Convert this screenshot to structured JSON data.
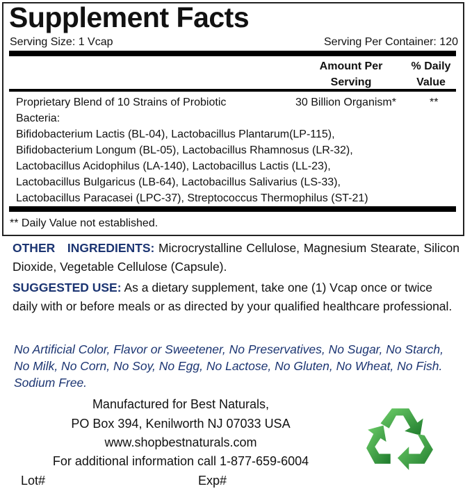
{
  "facts": {
    "title": "Supplement Facts",
    "serving_size": "Serving Size: 1 Vcap",
    "servings_per_container": "Serving Per Container: 120",
    "col_amount": [
      "Amount Per",
      "Serving"
    ],
    "col_daily": [
      "% Daily",
      "Value"
    ],
    "blend_lines": [
      "Proprietary Blend of 10 Strains of Probiotic",
      "Bacteria:",
      "Bifidobacterium Lactis (BL-04), Lactobacillus Plantarum(LP-115),",
      "Bifidobacterium Longum (BL-05), Lactobacillus Rhamnosus (LR-32),",
      "Lactobacillus Acidophilus (LA-140), Lactobacillus Lactis (LL-23),",
      "Lactobacillus Bulgaricus (LB-64), Lactobacillus Salivarius (LS-33),",
      "Lactobacillus Paracasei (LPC-37), Streptococcus Thermophilus (ST-21)"
    ],
    "amount": "30 Billion Organism*",
    "daily": "**",
    "footnote": "** Daily Value not established."
  },
  "other_ingredients": {
    "label": "OTHER  INGREDIENTS:",
    "text": "Microcrystalline Cellulose, Magnesium Stearate, Silicon Dioxide, Vegetable Cellulose (Capsule)."
  },
  "suggested_use": {
    "label": "SUGGESTED USE:",
    "text": "As a dietary supplement, take one (1) Vcap once or twice daily with or before meals or as directed by your qualified healthcare professional."
  },
  "free_from": "No Artificial Color, Flavor or Sweetener, No Preservatives, No Sugar, No Starch, No Milk, No Corn, No Soy, No Egg, No Lactose, No Gluten, No Wheat, No Fish. Sodium Free.",
  "manufacturer": {
    "line1": "Manufactured for Best Naturals,",
    "line2": "PO Box 394, Kenilworth NJ 07033 USA",
    "website": "www.shopbestnaturals.com",
    "phone_line": "For additional information call 1-877-659-6004",
    "lot": "Lot#",
    "exp": "Exp#"
  },
  "colors": {
    "heading_blue": "#1c3572",
    "recycle_green": "#2e9a3a"
  },
  "icons": {
    "recycle": "recycle-icon"
  }
}
